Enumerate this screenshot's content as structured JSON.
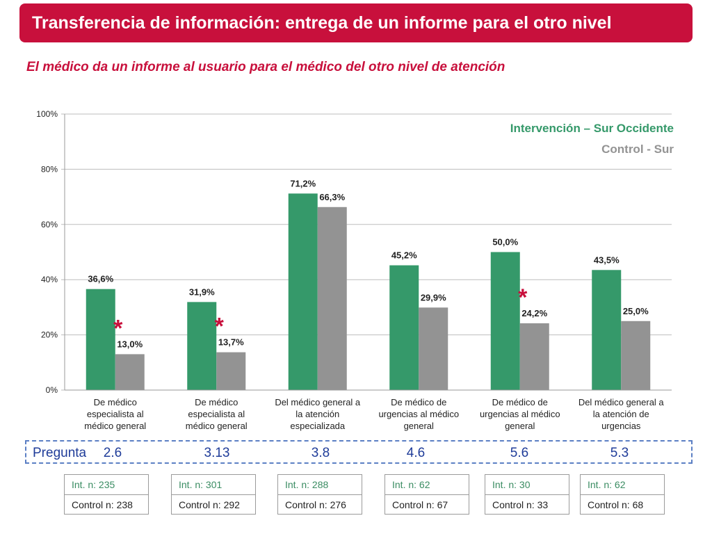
{
  "header": {
    "title": "Transferencia de información: entrega de un informe para el otro nivel",
    "subtitle": "El médico da un informe al usuario para el médico del otro nivel de atención"
  },
  "colors": {
    "accent": "#c8103c",
    "intervention": "#35996a",
    "control": "#939393",
    "pregunta": "#1f3c99"
  },
  "chart_data": {
    "type": "bar",
    "categories": [
      [
        "De médico",
        "especialista al",
        "médico general"
      ],
      [
        "De médico",
        "especialista al",
        "médico general"
      ],
      [
        "Del médico general a",
        "la atención",
        "especializada"
      ],
      [
        "De médico de",
        "urgencias al médico",
        "general"
      ],
      [
        "De médico de",
        "urgencias al médico",
        "general"
      ],
      [
        "Del médico general a",
        "la atención de",
        "urgencias"
      ]
    ],
    "series": [
      {
        "name": "Intervención – Sur Occidente",
        "values": [
          36.6,
          31.9,
          71.2,
          45.2,
          50.0,
          43.5
        ],
        "labels": [
          "36,6%",
          "31,9%",
          "71,2%",
          "45,2%",
          "50,0%",
          "43,5%"
        ]
      },
      {
        "name": "Control - Sur",
        "values": [
          13.0,
          13.7,
          66.3,
          29.9,
          24.2,
          25.0
        ],
        "labels": [
          "13,0%",
          "13,7%",
          "66,3%",
          "29,9%",
          "24,2%",
          "25,0%"
        ]
      }
    ],
    "significance": [
      true,
      true,
      false,
      false,
      true,
      false
    ],
    "significance_mark": "*",
    "ylim": [
      0,
      100
    ],
    "yticks": [
      0,
      20,
      40,
      60,
      80,
      100
    ],
    "ytick_labels": [
      "0%",
      "20%",
      "40%",
      "60%",
      "80%",
      "100%"
    ],
    "grid": true,
    "legend_position": "top-right"
  },
  "pregunta": {
    "label": "Pregunta",
    "values": [
      "2.6",
      "3.13",
      "3.8",
      "4.6",
      "5.6",
      "5.3"
    ]
  },
  "sample_sizes": [
    {
      "int": "Int. n: 235",
      "control": "Control n: 238"
    },
    {
      "int": "Int. n: 301",
      "control": "Control n: 292"
    },
    {
      "int": "Int. n: 288",
      "control": "Control n: 276"
    },
    {
      "int": "Int. n: 62",
      "control": "Control n: 67"
    },
    {
      "int": "Int. n: 30",
      "control": "Control n: 33"
    },
    {
      "int": "Int. n: 62",
      "control": "Control n: 68"
    }
  ]
}
